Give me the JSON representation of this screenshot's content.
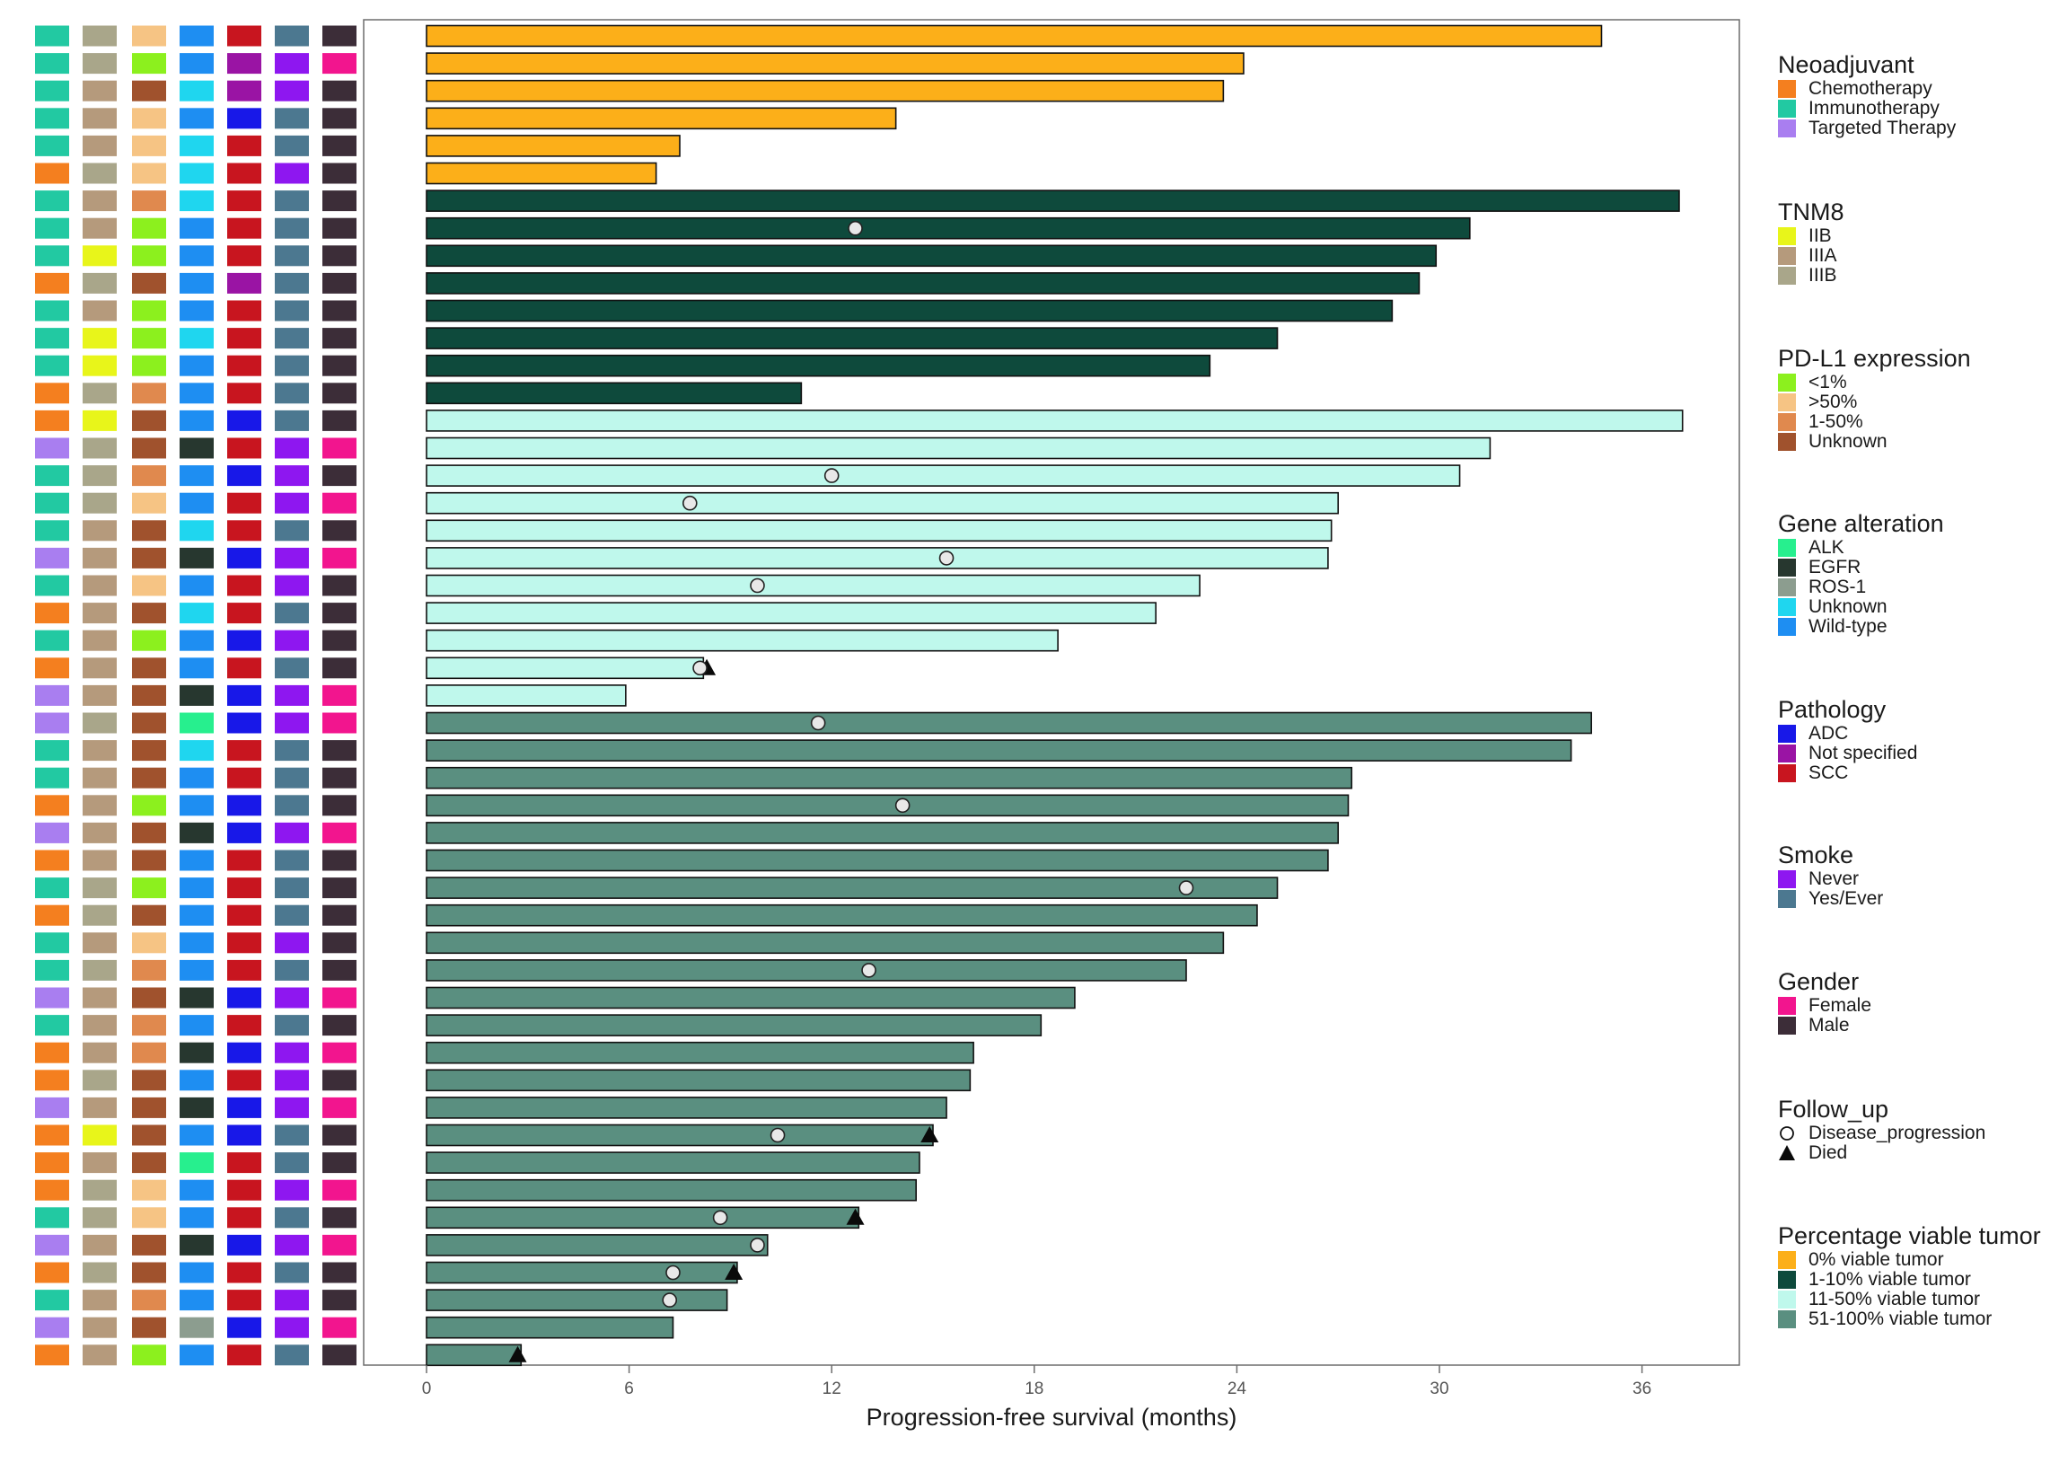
{
  "chart_data": {
    "type": "bar",
    "orientation": "horizontal",
    "xlabel": "Progression-free survival (months)",
    "xlim": [
      0,
      38.5
    ],
    "xticks": [
      0,
      6,
      12,
      18,
      24,
      30,
      36
    ],
    "grid": false,
    "tile_columns": [
      "Neoadjuvant",
      "TNM8",
      "PD-L1 expression",
      "Gene alteration",
      "Pathology",
      "Smoke",
      "Gender"
    ],
    "colors": {
      "Neoadjuvant": {
        "Chemotherapy": "#f47f1f",
        "Immunotherapy": "#22c9a2",
        "Targeted Therapy": "#a97ef0"
      },
      "TNM8": {
        "IIB": "#e8f51a",
        "IIIA": "#b59a7c",
        "IIIB": "#a9a68a"
      },
      "PD-L1 expression": {
        "<1%": "#8cf01e",
        ">50%": "#f6c484",
        "1-50%": "#e0894e",
        "Unknown": "#a0522d"
      },
      "Gene alteration": {
        "ALK": "#27ef8e",
        "EGFR": "#27372f",
        "ROS-1": "#8c9d8f",
        "Unknown": "#1fd6ef",
        "Wild-type": "#1e8ef2"
      },
      "Pathology": {
        "ADC": "#1818e8",
        "Not specified": "#9a14a4",
        "SCC": "#c8151f"
      },
      "Smoke": {
        "Never": "#8e17f0",
        "Yes/Ever": "#4c7890"
      },
      "Gender": {
        "Female": "#f2158e",
        "Male": "#3c2d38"
      },
      "Percentage viable tumor": {
        "0% viable tumor": "#fcaf19",
        "1-10% viable tumor": "#0e4a3c",
        "11-50% viable tumor": "#bff8ec",
        "51-100% viable tumor": "#5a8f80"
      }
    },
    "rows": [
      {
        "pfs": 34.8,
        "group": "0% viable tumor",
        "progression": null,
        "died": null,
        "tiles": [
          "Immunotherapy",
          "IIIB",
          ">50%",
          "Wild-type",
          "SCC",
          "Yes/Ever",
          "Male"
        ]
      },
      {
        "pfs": 24.2,
        "group": "0% viable tumor",
        "progression": null,
        "died": null,
        "tiles": [
          "Immunotherapy",
          "IIIB",
          "<1%",
          "Wild-type",
          "Not specified",
          "Never",
          "Female"
        ]
      },
      {
        "pfs": 23.6,
        "group": "0% viable tumor",
        "progression": null,
        "died": null,
        "tiles": [
          "Immunotherapy",
          "IIIA",
          "Unknown",
          "Unknown",
          "Not specified",
          "Never",
          "Male"
        ]
      },
      {
        "pfs": 13.9,
        "group": "0% viable tumor",
        "progression": null,
        "died": null,
        "tiles": [
          "Immunotherapy",
          "IIIA",
          ">50%",
          "Wild-type",
          "ADC",
          "Yes/Ever",
          "Male"
        ]
      },
      {
        "pfs": 7.5,
        "group": "0% viable tumor",
        "progression": null,
        "died": null,
        "tiles": [
          "Immunotherapy",
          "IIIA",
          ">50%",
          "Unknown",
          "SCC",
          "Yes/Ever",
          "Male"
        ]
      },
      {
        "pfs": 6.8,
        "group": "0% viable tumor",
        "progression": null,
        "died": null,
        "tiles": [
          "Chemotherapy",
          "IIIB",
          ">50%",
          "Unknown",
          "SCC",
          "Never",
          "Male"
        ]
      },
      {
        "pfs": 37.1,
        "group": "1-10% viable tumor",
        "progression": null,
        "died": null,
        "tiles": [
          "Immunotherapy",
          "IIIA",
          "1-50%",
          "Unknown",
          "SCC",
          "Yes/Ever",
          "Male"
        ]
      },
      {
        "pfs": 30.9,
        "group": "1-10% viable tumor",
        "progression": 12.7,
        "died": null,
        "tiles": [
          "Immunotherapy",
          "IIIA",
          "<1%",
          "Wild-type",
          "SCC",
          "Yes/Ever",
          "Male"
        ]
      },
      {
        "pfs": 29.9,
        "group": "1-10% viable tumor",
        "progression": null,
        "died": null,
        "tiles": [
          "Immunotherapy",
          "IIB",
          "<1%",
          "Wild-type",
          "SCC",
          "Yes/Ever",
          "Male"
        ]
      },
      {
        "pfs": 29.4,
        "group": "1-10% viable tumor",
        "progression": null,
        "died": null,
        "tiles": [
          "Chemotherapy",
          "IIIB",
          "Unknown",
          "Wild-type",
          "Not specified",
          "Yes/Ever",
          "Male"
        ]
      },
      {
        "pfs": 28.6,
        "group": "1-10% viable tumor",
        "progression": null,
        "died": null,
        "tiles": [
          "Immunotherapy",
          "IIIA",
          "<1%",
          "Wild-type",
          "SCC",
          "Yes/Ever",
          "Male"
        ]
      },
      {
        "pfs": 25.2,
        "group": "1-10% viable tumor",
        "progression": null,
        "died": null,
        "tiles": [
          "Immunotherapy",
          "IIB",
          "<1%",
          "Unknown",
          "SCC",
          "Yes/Ever",
          "Male"
        ]
      },
      {
        "pfs": 23.2,
        "group": "1-10% viable tumor",
        "progression": null,
        "died": null,
        "tiles": [
          "Immunotherapy",
          "IIB",
          "<1%",
          "Wild-type",
          "SCC",
          "Yes/Ever",
          "Male"
        ]
      },
      {
        "pfs": 11.1,
        "group": "1-10% viable tumor",
        "progression": null,
        "died": null,
        "tiles": [
          "Chemotherapy",
          "IIIB",
          "1-50%",
          "Wild-type",
          "SCC",
          "Yes/Ever",
          "Male"
        ]
      },
      {
        "pfs": 37.2,
        "group": "11-50% viable tumor",
        "progression": null,
        "died": null,
        "tiles": [
          "Chemotherapy",
          "IIB",
          "Unknown",
          "Wild-type",
          "ADC",
          "Yes/Ever",
          "Male"
        ]
      },
      {
        "pfs": 31.5,
        "group": "11-50% viable tumor",
        "progression": null,
        "died": null,
        "tiles": [
          "Targeted Therapy",
          "IIIB",
          "Unknown",
          "EGFR",
          "SCC",
          "Never",
          "Female"
        ]
      },
      {
        "pfs": 30.6,
        "group": "11-50% viable tumor",
        "progression": 12.0,
        "died": null,
        "tiles": [
          "Immunotherapy",
          "IIIB",
          "1-50%",
          "Wild-type",
          "ADC",
          "Never",
          "Male"
        ]
      },
      {
        "pfs": 27.0,
        "group": "11-50% viable tumor",
        "progression": 7.8,
        "died": null,
        "tiles": [
          "Immunotherapy",
          "IIIB",
          ">50%",
          "Wild-type",
          "SCC",
          "Never",
          "Female"
        ]
      },
      {
        "pfs": 26.8,
        "group": "11-50% viable tumor",
        "progression": null,
        "died": null,
        "tiles": [
          "Immunotherapy",
          "IIIA",
          "Unknown",
          "Unknown",
          "SCC",
          "Yes/Ever",
          "Male"
        ]
      },
      {
        "pfs": 26.7,
        "group": "11-50% viable tumor",
        "progression": 15.4,
        "died": null,
        "tiles": [
          "Targeted Therapy",
          "IIIA",
          "Unknown",
          "EGFR",
          "ADC",
          "Never",
          "Female"
        ]
      },
      {
        "pfs": 22.9,
        "group": "11-50% viable tumor",
        "progression": 9.8,
        "died": null,
        "tiles": [
          "Immunotherapy",
          "IIIA",
          ">50%",
          "Wild-type",
          "SCC",
          "Never",
          "Male"
        ]
      },
      {
        "pfs": 21.6,
        "group": "11-50% viable tumor",
        "progression": null,
        "died": null,
        "tiles": [
          "Chemotherapy",
          "IIIA",
          "Unknown",
          "Unknown",
          "SCC",
          "Yes/Ever",
          "Male"
        ]
      },
      {
        "pfs": 18.7,
        "group": "11-50% viable tumor",
        "progression": null,
        "died": null,
        "tiles": [
          "Immunotherapy",
          "IIIA",
          "<1%",
          "Wild-type",
          "ADC",
          "Never",
          "Male"
        ]
      },
      {
        "pfs": 8.2,
        "group": "11-50% viable tumor",
        "progression": 8.1,
        "died": 8.3,
        "tiles": [
          "Chemotherapy",
          "IIIA",
          "Unknown",
          "Wild-type",
          "SCC",
          "Yes/Ever",
          "Male"
        ]
      },
      {
        "pfs": 5.9,
        "group": "11-50% viable tumor",
        "progression": null,
        "died": null,
        "tiles": [
          "Targeted Therapy",
          "IIIA",
          "Unknown",
          "EGFR",
          "ADC",
          "Never",
          "Female"
        ]
      },
      {
        "pfs": 34.5,
        "group": "51-100% viable tumor",
        "progression": 11.6,
        "died": null,
        "tiles": [
          "Targeted Therapy",
          "IIIB",
          "Unknown",
          "ALK",
          "ADC",
          "Never",
          "Female"
        ]
      },
      {
        "pfs": 33.9,
        "group": "51-100% viable tumor",
        "progression": null,
        "died": null,
        "tiles": [
          "Immunotherapy",
          "IIIA",
          "Unknown",
          "Unknown",
          "SCC",
          "Yes/Ever",
          "Male"
        ]
      },
      {
        "pfs": 27.4,
        "group": "51-100% viable tumor",
        "progression": null,
        "died": null,
        "tiles": [
          "Immunotherapy",
          "IIIA",
          "Unknown",
          "Wild-type",
          "SCC",
          "Yes/Ever",
          "Male"
        ]
      },
      {
        "pfs": 27.3,
        "group": "51-100% viable tumor",
        "progression": 14.1,
        "died": null,
        "tiles": [
          "Chemotherapy",
          "IIIA",
          "<1%",
          "Wild-type",
          "ADC",
          "Yes/Ever",
          "Male"
        ]
      },
      {
        "pfs": 27.0,
        "group": "51-100% viable tumor",
        "progression": null,
        "died": null,
        "tiles": [
          "Targeted Therapy",
          "IIIA",
          "Unknown",
          "EGFR",
          "ADC",
          "Never",
          "Female"
        ]
      },
      {
        "pfs": 26.7,
        "group": "51-100% viable tumor",
        "progression": null,
        "died": null,
        "tiles": [
          "Chemotherapy",
          "IIIA",
          "Unknown",
          "Wild-type",
          "SCC",
          "Yes/Ever",
          "Male"
        ]
      },
      {
        "pfs": 25.2,
        "group": "51-100% viable tumor",
        "progression": 22.5,
        "died": null,
        "tiles": [
          "Immunotherapy",
          "IIIB",
          "<1%",
          "Wild-type",
          "SCC",
          "Yes/Ever",
          "Male"
        ]
      },
      {
        "pfs": 24.6,
        "group": "51-100% viable tumor",
        "progression": null,
        "died": null,
        "tiles": [
          "Chemotherapy",
          "IIIB",
          "Unknown",
          "Wild-type",
          "SCC",
          "Yes/Ever",
          "Male"
        ]
      },
      {
        "pfs": 23.6,
        "group": "51-100% viable tumor",
        "progression": null,
        "died": null,
        "tiles": [
          "Immunotherapy",
          "IIIA",
          ">50%",
          "Wild-type",
          "SCC",
          "Never",
          "Male"
        ]
      },
      {
        "pfs": 22.5,
        "group": "51-100% viable tumor",
        "progression": 13.1,
        "died": null,
        "tiles": [
          "Immunotherapy",
          "IIIB",
          "1-50%",
          "Wild-type",
          "SCC",
          "Yes/Ever",
          "Male"
        ]
      },
      {
        "pfs": 19.2,
        "group": "51-100% viable tumor",
        "progression": null,
        "died": null,
        "tiles": [
          "Targeted Therapy",
          "IIIA",
          "Unknown",
          "EGFR",
          "ADC",
          "Never",
          "Female"
        ]
      },
      {
        "pfs": 18.2,
        "group": "51-100% viable tumor",
        "progression": null,
        "died": null,
        "tiles": [
          "Immunotherapy",
          "IIIA",
          "1-50%",
          "Wild-type",
          "SCC",
          "Yes/Ever",
          "Male"
        ]
      },
      {
        "pfs": 16.2,
        "group": "51-100% viable tumor",
        "progression": null,
        "died": null,
        "tiles": [
          "Chemotherapy",
          "IIIA",
          "1-50%",
          "EGFR",
          "ADC",
          "Never",
          "Female"
        ]
      },
      {
        "pfs": 16.1,
        "group": "51-100% viable tumor",
        "progression": null,
        "died": null,
        "tiles": [
          "Chemotherapy",
          "IIIB",
          "Unknown",
          "Wild-type",
          "SCC",
          "Never",
          "Male"
        ]
      },
      {
        "pfs": 15.4,
        "group": "51-100% viable tumor",
        "progression": null,
        "died": null,
        "tiles": [
          "Targeted Therapy",
          "IIIA",
          "Unknown",
          "EGFR",
          "ADC",
          "Never",
          "Female"
        ]
      },
      {
        "pfs": 15.0,
        "group": "51-100% viable tumor",
        "progression": 10.4,
        "died": 14.9,
        "tiles": [
          "Chemotherapy",
          "IIB",
          "Unknown",
          "Wild-type",
          "ADC",
          "Yes/Ever",
          "Male"
        ]
      },
      {
        "pfs": 14.6,
        "group": "51-100% viable tumor",
        "progression": null,
        "died": null,
        "tiles": [
          "Chemotherapy",
          "IIIA",
          "Unknown",
          "ALK",
          "SCC",
          "Yes/Ever",
          "Male"
        ]
      },
      {
        "pfs": 14.5,
        "group": "51-100% viable tumor",
        "progression": null,
        "died": null,
        "tiles": [
          "Chemotherapy",
          "IIIB",
          ">50%",
          "Wild-type",
          "SCC",
          "Never",
          "Female"
        ]
      },
      {
        "pfs": 12.8,
        "group": "51-100% viable tumor",
        "progression": 8.7,
        "died": 12.7,
        "tiles": [
          "Immunotherapy",
          "IIIB",
          ">50%",
          "Wild-type",
          "SCC",
          "Yes/Ever",
          "Male"
        ]
      },
      {
        "pfs": 10.1,
        "group": "51-100% viable tumor",
        "progression": 9.8,
        "died": null,
        "tiles": [
          "Targeted Therapy",
          "IIIA",
          "Unknown",
          "EGFR",
          "ADC",
          "Never",
          "Female"
        ]
      },
      {
        "pfs": 9.2,
        "group": "51-100% viable tumor",
        "progression": 7.3,
        "died": 9.1,
        "tiles": [
          "Chemotherapy",
          "IIIB",
          "Unknown",
          "Wild-type",
          "SCC",
          "Yes/Ever",
          "Male"
        ]
      },
      {
        "pfs": 8.9,
        "group": "51-100% viable tumor",
        "progression": 7.2,
        "died": null,
        "tiles": [
          "Immunotherapy",
          "IIIA",
          "1-50%",
          "Wild-type",
          "SCC",
          "Never",
          "Male"
        ]
      },
      {
        "pfs": 7.3,
        "group": "51-100% viable tumor",
        "progression": null,
        "died": null,
        "tiles": [
          "Targeted Therapy",
          "IIIA",
          "Unknown",
          "ROS-1",
          "ADC",
          "Never",
          "Female"
        ]
      },
      {
        "pfs": 2.8,
        "group": "51-100% viable tumor",
        "progression": null,
        "died": 2.7,
        "tiles": [
          "Chemotherapy",
          "IIIA",
          "<1%",
          "Wild-type",
          "SCC",
          "Yes/Ever",
          "Male"
        ]
      }
    ]
  },
  "legend": {
    "neoadjuvant": {
      "title": "Neoadjuvant",
      "items": [
        {
          "label": "Chemotherapy",
          "color": "#f47f1f"
        },
        {
          "label": "Immunotherapy",
          "color": "#22c9a2"
        },
        {
          "label": "Targeted Therapy",
          "color": "#a97ef0"
        }
      ]
    },
    "tnm8": {
      "title": "TNM8",
      "items": [
        {
          "label": "IIB",
          "color": "#e8f51a"
        },
        {
          "label": "IIIA",
          "color": "#b59a7c"
        },
        {
          "label": "IIIB",
          "color": "#a9a68a"
        }
      ]
    },
    "pdl1": {
      "title": "PD-L1 expression",
      "items": [
        {
          "label": "<1%",
          "color": "#8cf01e"
        },
        {
          "label": ">50%",
          "color": "#f6c484"
        },
        {
          "label": "1-50%",
          "color": "#e0894e"
        },
        {
          "label": "Unknown",
          "color": "#a0522d"
        }
      ]
    },
    "gene": {
      "title": "Gene alteration",
      "items": [
        {
          "label": "ALK",
          "color": "#27ef8e"
        },
        {
          "label": "EGFR",
          "color": "#27372f"
        },
        {
          "label": "ROS-1",
          "color": "#8c9d8f"
        },
        {
          "label": "Unknown",
          "color": "#1fd6ef"
        },
        {
          "label": "Wild-type",
          "color": "#1e8ef2"
        }
      ]
    },
    "pathology": {
      "title": "Pathology",
      "items": [
        {
          "label": "ADC",
          "color": "#1818e8"
        },
        {
          "label": "Not specified",
          "color": "#9a14a4"
        },
        {
          "label": "SCC",
          "color": "#c8151f"
        }
      ]
    },
    "smoke": {
      "title": "Smoke",
      "items": [
        {
          "label": "Never",
          "color": "#8e17f0"
        },
        {
          "label": "Yes/Ever",
          "color": "#4c7890"
        }
      ]
    },
    "gender": {
      "title": "Gender",
      "items": [
        {
          "label": "Female",
          "color": "#f2158e"
        },
        {
          "label": "Male",
          "color": "#3c2d38"
        }
      ]
    },
    "follow_up": {
      "title": "Follow_up",
      "items": [
        {
          "label": "Disease_progression",
          "shape": "circle"
        },
        {
          "label": "Died",
          "shape": "triangle"
        }
      ]
    },
    "viable": {
      "title": "Percentage viable tumor",
      "items": [
        {
          "label": "0% viable tumor",
          "color": "#fcaf19"
        },
        {
          "label": "1-10% viable tumor",
          "color": "#0e4a3c"
        },
        {
          "label": "11-50% viable tumor",
          "color": "#bff8ec"
        },
        {
          "label": "51-100% viable tumor",
          "color": "#5a8f80"
        }
      ]
    }
  }
}
